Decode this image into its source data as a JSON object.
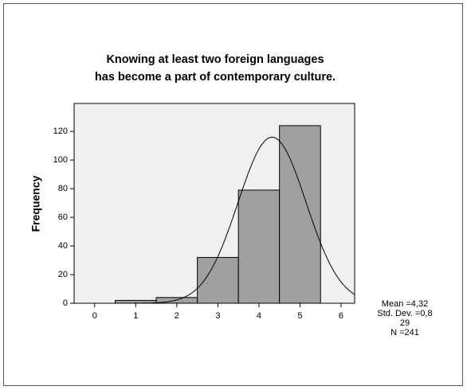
{
  "chart_data": {
    "type": "histogram",
    "title": [
      "Knowing at least two foreign languages",
      "has become a part of contemporary culture."
    ],
    "y_label": "Frequency",
    "bins": [
      0.5,
      1.5,
      2.5,
      3.5,
      4.5,
      5.5
    ],
    "counts": [
      2,
      4,
      32,
      79,
      124
    ],
    "color": "#a0a0a0",
    "xlim": [
      -0.5,
      6.33
    ],
    "xticks": [
      0,
      1,
      2,
      3,
      4,
      5,
      6
    ],
    "ylim": [
      0,
      139.5
    ],
    "yticks": [
      0,
      20,
      40,
      60,
      80,
      100,
      120
    ],
    "stats": [
      {
        "value": 4.32,
        "label": "Mean =4,32"
      },
      {
        "value": 0.829,
        "label": "Std. Dev. =0,829"
      },
      {
        "value": 241,
        "label": "N =241"
      }
    ]
  }
}
